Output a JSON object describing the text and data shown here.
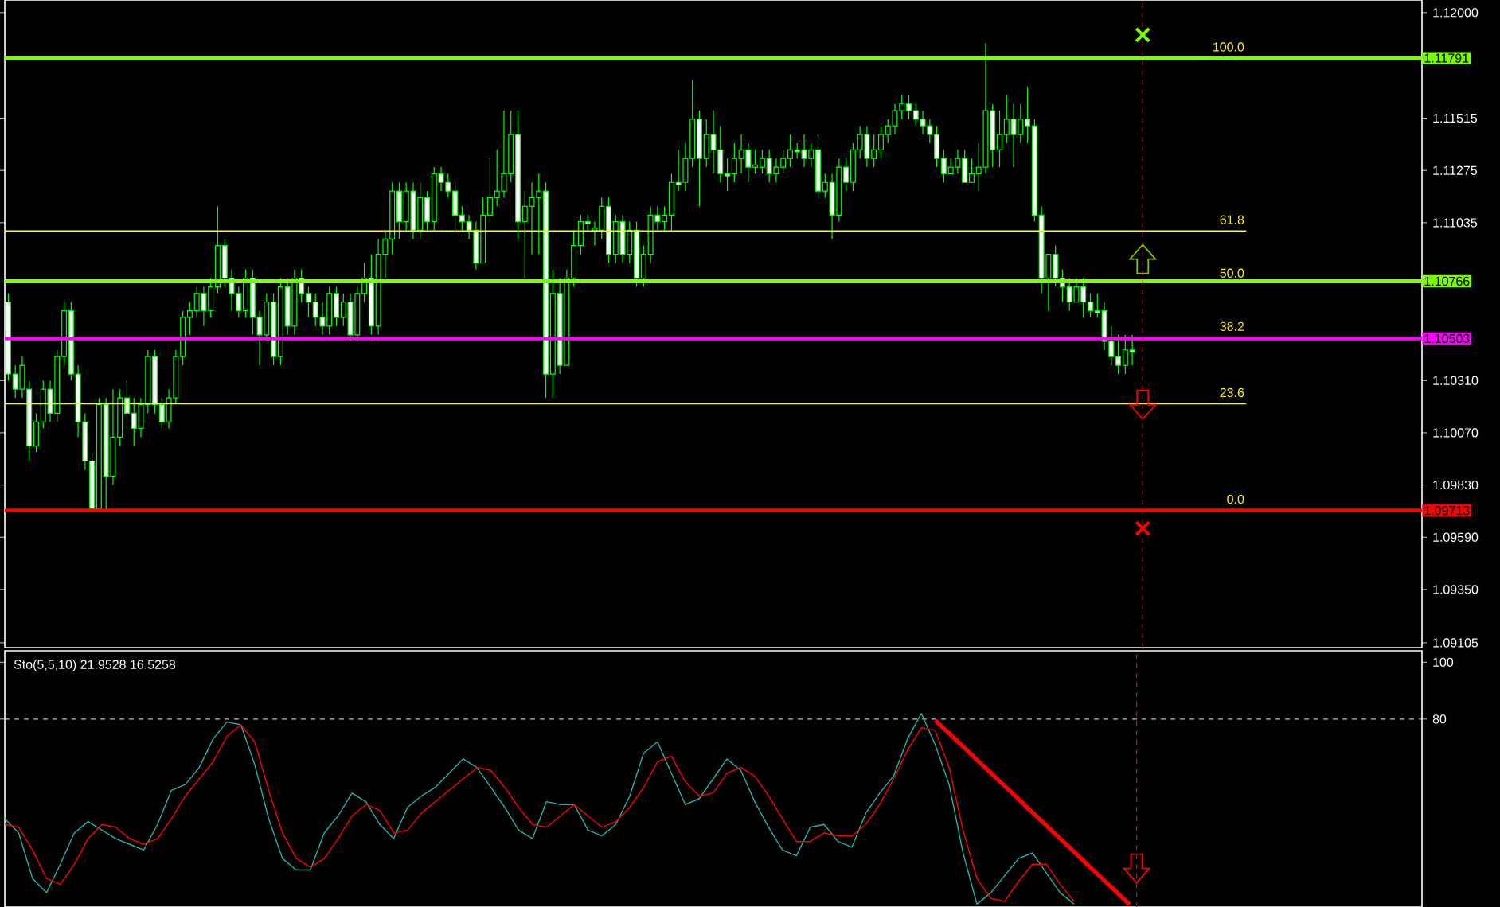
{
  "chart_data": [
    {
      "type": "candlestick",
      "color": "#00ff00",
      "tick_labels": "y",
      "categories": [
        null,
        null,
        null,
        null,
        null,
        null,
        null,
        null,
        null,
        null,
        null,
        null,
        null,
        null,
        null,
        null,
        null,
        null,
        null,
        null,
        null,
        null,
        null,
        null,
        null,
        null,
        null,
        null,
        null,
        null,
        null,
        null,
        null,
        null,
        null,
        null,
        null,
        null,
        null,
        null,
        null,
        null,
        null,
        null,
        null,
        null,
        null,
        null,
        null,
        null,
        null,
        null,
        null,
        null,
        null,
        null,
        null,
        null,
        null,
        null,
        null,
        null,
        null,
        null,
        null,
        null,
        null,
        null,
        null,
        null,
        null,
        null,
        null,
        null,
        null,
        null,
        null,
        null,
        null,
        null,
        null,
        null,
        null,
        null,
        null,
        null,
        null,
        null,
        null,
        null,
        null,
        null,
        null,
        null,
        null,
        null,
        null,
        null,
        null,
        null,
        null,
        null,
        null,
        null,
        null,
        null,
        null,
        null,
        null,
        null,
        null,
        null,
        null,
        null,
        null,
        null,
        null,
        null,
        null,
        null,
        null,
        null,
        null,
        null,
        null,
        null,
        null,
        null,
        null,
        null,
        null,
        null,
        null,
        null,
        null,
        null,
        null,
        null,
        null,
        null,
        null,
        null,
        null,
        null,
        null,
        null,
        null,
        null,
        null,
        null,
        null,
        null,
        null,
        null,
        null,
        null,
        null,
        null,
        null,
        null,
        null,
        null,
        null,
        null,
        null,
        null,
        null,
        null,
        null,
        null,
        null,
        null,
        null,
        null,
        null,
        null,
        null,
        null,
        null,
        null,
        null,
        null,
        null,
        null,
        null,
        null,
        null,
        null,
        null,
        null,
        null,
        null,
        null,
        null,
        null,
        null,
        null,
        null,
        null,
        null,
        null,
        null,
        null
      ],
      "ohlc": [
        [
          1.1067,
          1.1071,
          1.1031,
          1.1034
        ],
        [
          1.1034,
          1.1038,
          1.1023,
          1.1027
        ],
        [
          1.1027,
          1.1042,
          1.1023,
          1.1038
        ],
        [
          1.1027,
          1.1031,
          1.0994,
          1.1001
        ],
        [
          1.1001,
          1.1016,
          1.0998,
          1.1012
        ],
        [
          1.1012,
          1.1031,
          1.1009,
          1.1027
        ],
        [
          1.1027,
          1.1031,
          1.1012,
          1.1016
        ],
        [
          1.1016,
          1.1045,
          1.1012,
          1.1042
        ],
        [
          1.1042,
          1.1067,
          1.1038,
          1.1063
        ],
        [
          1.1063,
          1.1067,
          1.1031,
          1.1034
        ],
        [
          1.1034,
          1.1038,
          1.1005,
          1.1012
        ],
        [
          1.1012,
          1.1016,
          1.099,
          1.0994
        ],
        [
          1.0994,
          1.0998,
          1.0972,
          1.0972
        ],
        [
          1.0972,
          1.1023,
          1.0972,
          1.102
        ],
        [
          1.102,
          1.1023,
          1.0972,
          1.0987
        ],
        [
          1.0987,
          1.1027,
          1.0983,
          1.1005
        ],
        [
          1.1005,
          1.1027,
          1.1001,
          1.1023
        ],
        [
          1.1023,
          1.1031,
          1.1009,
          1.1016
        ],
        [
          1.1016,
          1.1023,
          1.1001,
          1.1009
        ],
        [
          1.1009,
          1.1023,
          1.1005,
          1.102
        ],
        [
          1.102,
          1.1045,
          1.1016,
          1.1042
        ],
        [
          1.1042,
          1.1045,
          1.1016,
          1.102
        ],
        [
          1.102,
          1.1023,
          1.1009,
          1.1012
        ],
        [
          1.1012,
          1.1027,
          1.1009,
          1.1023
        ],
        [
          1.1023,
          1.1045,
          1.102,
          1.1042
        ],
        [
          1.1042,
          1.1063,
          1.1038,
          1.106
        ],
        [
          1.106,
          1.1067,
          1.1052,
          1.1063
        ],
        [
          1.1063,
          1.1074,
          1.106,
          1.1071
        ],
        [
          1.1071,
          1.1074,
          1.1056,
          1.1063
        ],
        [
          1.1063,
          1.1078,
          1.106,
          1.1074
        ],
        [
          1.1074,
          1.1111,
          1.1071,
          1.1093
        ],
        [
          1.1093,
          1.1096,
          1.1074,
          1.1078
        ],
        [
          1.1078,
          1.1082,
          1.1063,
          1.1071
        ],
        [
          1.1071,
          1.1074,
          1.106,
          1.1063
        ],
        [
          1.1063,
          1.1082,
          1.106,
          1.1078
        ],
        [
          1.1078,
          1.1082,
          1.1052,
          1.106
        ],
        [
          1.106,
          1.1063,
          1.1038,
          1.1052
        ],
        [
          1.1052,
          1.1071,
          1.1049,
          1.1067
        ],
        [
          1.1067,
          1.1071,
          1.1038,
          1.1042
        ],
        [
          1.1042,
          1.1078,
          1.1038,
          1.1074
        ],
        [
          1.1074,
          1.1078,
          1.1052,
          1.1056
        ],
        [
          1.1056,
          1.1082,
          1.1052,
          1.1078
        ],
        [
          1.1078,
          1.1082,
          1.1067,
          1.1071
        ],
        [
          1.1071,
          1.1074,
          1.106,
          1.1067
        ],
        [
          1.1067,
          1.1071,
          1.1056,
          1.106
        ],
        [
          1.106,
          1.1067,
          1.1052,
          1.1056
        ],
        [
          1.1056,
          1.1074,
          1.1052,
          1.1071
        ],
        [
          1.1071,
          1.1074,
          1.1056,
          1.106
        ],
        [
          1.106,
          1.1071,
          1.1056,
          1.1067
        ],
        [
          1.1067,
          1.1071,
          1.1049,
          1.1052
        ],
        [
          1.1052,
          1.1074,
          1.1049,
          1.1071
        ],
        [
          1.1071,
          1.1085,
          1.1067,
          1.1078
        ],
        [
          1.1078,
          1.1089,
          1.1052,
          1.1056
        ],
        [
          1.1056,
          1.1096,
          1.1052,
          1.1089
        ],
        [
          1.1089,
          1.11,
          1.1078,
          1.1096
        ],
        [
          1.1096,
          1.1122,
          1.1089,
          1.1118
        ],
        [
          1.1118,
          1.1122,
          1.1096,
          1.1104
        ],
        [
          1.1104,
          1.1122,
          1.11,
          1.1118
        ],
        [
          1.1118,
          1.1122,
          1.1096,
          1.11
        ],
        [
          1.11,
          1.1122,
          1.1096,
          1.1115
        ],
        [
          1.1115,
          1.1118,
          1.11,
          1.1104
        ],
        [
          1.1104,
          1.1129,
          1.11,
          1.1126
        ],
        [
          1.1126,
          1.1129,
          1.1118,
          1.1122
        ],
        [
          1.1122,
          1.1126,
          1.1115,
          1.1118
        ],
        [
          1.1118,
          1.1122,
          1.11,
          1.1107
        ],
        [
          1.1107,
          1.1111,
          1.11,
          1.1104
        ],
        [
          1.1104,
          1.1107,
          1.1096,
          1.11
        ],
        [
          1.11,
          1.1104,
          1.1082,
          1.1085
        ],
        [
          1.1085,
          1.1115,
          1.1085,
          1.1107
        ],
        [
          1.1107,
          1.1133,
          1.1104,
          1.1115
        ],
        [
          1.1115,
          1.1137,
          1.1111,
          1.1118
        ],
        [
          1.1118,
          1.1155,
          1.1115,
          1.1126
        ],
        [
          1.1126,
          1.1155,
          1.1122,
          1.1144
        ],
        [
          1.1144,
          1.1155,
          1.1096,
          1.1104
        ],
        [
          1.1104,
          1.1118,
          1.1078,
          1.1111
        ],
        [
          1.1111,
          1.1122,
          1.1089,
          1.1115
        ],
        [
          1.1115,
          1.1126,
          1.1089,
          1.1118
        ],
        [
          1.1118,
          1.1122,
          1.1023,
          1.1034
        ],
        [
          1.1034,
          1.1082,
          1.1023,
          1.1071
        ],
        [
          1.1071,
          1.1078,
          1.1034,
          1.1038
        ],
        [
          1.1038,
          1.1082,
          1.1038,
          1.1078
        ],
        [
          1.1078,
          1.11,
          1.1074,
          1.1093
        ],
        [
          1.1093,
          1.1107,
          1.1089,
          1.1104
        ],
        [
          1.1104,
          1.1107,
          1.11,
          1.1103
        ],
        [
          1.11,
          1.1104,
          1.1093,
          1.1101
        ],
        [
          1.11,
          1.1115,
          1.1096,
          1.1111
        ],
        [
          1.1111,
          1.1115,
          1.1085,
          1.1089
        ],
        [
          1.1089,
          1.1107,
          1.1085,
          1.1104
        ],
        [
          1.1104,
          1.1107,
          1.1085,
          1.1089
        ],
        [
          1.1089,
          1.1104,
          1.1085,
          1.11
        ],
        [
          1.11,
          1.1104,
          1.1074,
          1.1078
        ],
        [
          1.1078,
          1.1093,
          1.1074,
          1.1089
        ],
        [
          1.1089,
          1.1111,
          1.1085,
          1.1107
        ],
        [
          1.1107,
          1.1111,
          1.11,
          1.1104
        ],
        [
          1.1104,
          1.1111,
          1.11,
          1.1107
        ],
        [
          1.1107,
          1.1126,
          1.11,
          1.1122
        ],
        [
          1.1122,
          1.1137,
          1.1118,
          1.1121
        ],
        [
          1.1122,
          1.114,
          1.1118,
          1.1133
        ],
        [
          1.1133,
          1.1169,
          1.1129,
          1.1151
        ],
        [
          1.1151,
          1.1155,
          1.1111,
          1.1133
        ],
        [
          1.1133,
          1.1151,
          1.1129,
          1.1144
        ],
        [
          1.1144,
          1.1155,
          1.1126,
          1.1137
        ],
        [
          1.1137,
          1.1148,
          1.1122,
          1.1126
        ],
        [
          1.1126,
          1.1133,
          1.1118,
          1.1125
        ],
        [
          1.1126,
          1.114,
          1.1122,
          1.1133
        ],
        [
          1.1133,
          1.1144,
          1.1126,
          1.1137
        ],
        [
          1.1137,
          1.114,
          1.1122,
          1.1129
        ],
        [
          1.1129,
          1.1137,
          1.1126,
          1.113
        ],
        [
          1.1129,
          1.1137,
          1.1126,
          1.1133
        ],
        [
          1.1133,
          1.1137,
          1.1122,
          1.1126
        ],
        [
          1.1126,
          1.1133,
          1.1122,
          1.1129
        ],
        [
          1.1129,
          1.1137,
          1.1126,
          1.1133
        ],
        [
          1.1133,
          1.1144,
          1.1129,
          1.1137
        ],
        [
          1.1137,
          1.114,
          1.1133,
          1.1136
        ],
        [
          1.1137,
          1.1144,
          1.1129,
          1.1133
        ],
        [
          1.1133,
          1.114,
          1.1129,
          1.1137
        ],
        [
          1.1137,
          1.1144,
          1.1115,
          1.1118
        ],
        [
          1.1118,
          1.1126,
          1.1115,
          1.1122
        ],
        [
          1.1122,
          1.1126,
          1.1096,
          1.1107
        ],
        [
          1.1107,
          1.1133,
          1.1104,
          1.1129
        ],
        [
          1.1129,
          1.1133,
          1.1118,
          1.1122
        ],
        [
          1.1122,
          1.114,
          1.1118,
          1.1137
        ],
        [
          1.1137,
          1.1148,
          1.1133,
          1.1144
        ],
        [
          1.1144,
          1.1148,
          1.1129,
          1.1133
        ],
        [
          1.1133,
          1.1144,
          1.1129,
          1.1137
        ],
        [
          1.1137,
          1.1148,
          1.1133,
          1.1144
        ],
        [
          1.1144,
          1.1151,
          1.114,
          1.1148
        ],
        [
          1.1148,
          1.1158,
          1.1144,
          1.1155
        ],
        [
          1.1155,
          1.1162,
          1.1151,
          1.1158
        ],
        [
          1.1158,
          1.1162,
          1.1151,
          1.1155
        ],
        [
          1.1155,
          1.1158,
          1.1148,
          1.1151
        ],
        [
          1.1151,
          1.1155,
          1.1144,
          1.1148
        ],
        [
          1.1148,
          1.1151,
          1.114,
          1.1144
        ],
        [
          1.1144,
          1.1148,
          1.1129,
          1.1133
        ],
        [
          1.1133,
          1.1137,
          1.1122,
          1.1126
        ],
        [
          1.1126,
          1.1133,
          1.1126,
          1.1129
        ],
        [
          1.1129,
          1.1137,
          1.1126,
          1.1133
        ],
        [
          1.1133,
          1.1137,
          1.1122,
          1.1122
        ],
        [
          1.1122,
          1.1133,
          1.1122,
          1.1126
        ],
        [
          1.1126,
          1.114,
          1.1118,
          1.1129
        ],
        [
          1.1129,
          1.1186,
          1.1126,
          1.1155
        ],
        [
          1.1155,
          1.1158,
          1.1129,
          1.1137
        ],
        [
          1.1137,
          1.1155,
          1.1129,
          1.1144
        ],
        [
          1.1144,
          1.1162,
          1.114,
          1.1151
        ],
        [
          1.1151,
          1.1158,
          1.1129,
          1.1144
        ],
        [
          1.1144,
          1.1158,
          1.114,
          1.1151
        ],
        [
          1.1151,
          1.1166,
          1.114,
          1.1148
        ],
        [
          1.1148,
          1.1151,
          1.1104,
          1.1107
        ],
        [
          1.1107,
          1.1111,
          1.1071,
          1.1078
        ],
        [
          1.1078,
          1.1089,
          1.1063,
          1.1089
        ],
        [
          1.1089,
          1.1093,
          1.1074,
          1.1078
        ],
        [
          1.1078,
          1.1082,
          1.1067,
          1.1074
        ],
        [
          1.1074,
          1.1078,
          1.1063,
          1.1067
        ],
        [
          1.1067,
          1.1078,
          1.1067,
          1.1074
        ],
        [
          1.1074,
          1.1078,
          1.106,
          1.1067
        ],
        [
          1.1067,
          1.1071,
          1.106,
          1.1063
        ],
        [
          1.1063,
          1.1071,
          1.106,
          1.1062
        ],
        [
          1.1063,
          1.1067,
          1.1045,
          1.1049
        ],
        [
          1.1049,
          1.1056,
          1.1038,
          1.1042
        ],
        [
          1.1042,
          1.1052,
          1.1034,
          1.1038
        ],
        [
          1.1038,
          1.1052,
          1.1034,
          1.1045
        ],
        [
          1.1045,
          1.1052,
          1.1038,
          1.1044
        ],
        null,
        null,
        null,
        null,
        null,
        null,
        null,
        null,
        null,
        null,
        null,
        null,
        null,
        null,
        null,
        null,
        null,
        null,
        null,
        null,
        null,
        null,
        null,
        null,
        null,
        null,
        null,
        null,
        null,
        null,
        null,
        null,
        null,
        null,
        null,
        null,
        null,
        null,
        null,
        null,
        null
      ],
      "ylim": [
        1.09083,
        1.12058
      ],
      "yticks": [
        {
          "value": 1.12,
          "label": "1.12000"
        },
        1.11515,
        1.11275,
        1.11035,
        {
          "value": 1.1031,
          "label": "1.10310"
        },
        {
          "value": 1.1007,
          "label": "1.10070"
        },
        {
          "value": 1.0983,
          "label": "1.09830"
        },
        {
          "value": 1.0959,
          "label": "1.09590"
        },
        {
          "value": 1.0935,
          "label": "1.09350"
        },
        1.09105
      ],
      "annotations": [
        {
          "text": "100.0",
          "y": 1.11791
        },
        {
          "text": "61.8",
          "y": 1.10997
        },
        {
          "text": "50.0",
          "y": 1.10752
        },
        {
          "text": "38.2",
          "y": 1.10507
        },
        {
          "text": "23.6",
          "y": 1.10203
        },
        {
          "text": "0.0",
          "y": 1.09713
        }
      ],
      "ref_lines": [
        {
          "axis": "y",
          "value": 1.10997,
          "color": "#ffff00",
          "line_style": "solid"
        },
        {
          "axis": "y",
          "value": 1.10203,
          "color": "#ffff00",
          "line_style": "solid"
        },
        {
          "axis": "y",
          "value": 1.11791,
          "label": "1.11791",
          "color": "#7cfc00"
        },
        {
          "axis": "y",
          "value": 1.10766,
          "label": "1.10766",
          "color": "#7cfc00"
        },
        {
          "axis": "y",
          "value": 1.10503,
          "label": "1.10503",
          "color": "#ff00ff"
        },
        {
          "axis": "y",
          "value": 1.09713,
          "label": "1.09713",
          "color": "#ff0000"
        }
      ]
    },
    {
      "type": "line",
      "title": "Sto(5,5,10) 21.9528 16.5258",
      "tick_labels": "y",
      "categories": [
        null,
        null,
        null,
        null,
        null,
        null,
        null,
        null,
        null,
        null,
        null,
        null,
        null,
        null,
        null,
        null,
        null,
        null,
        null,
        null,
        null,
        null,
        null,
        null,
        null,
        null,
        null,
        null,
        null,
        null,
        null,
        null,
        null,
        null,
        null,
        null,
        null,
        null,
        null,
        null,
        null,
        null,
        null,
        null,
        null,
        null,
        null,
        null,
        null,
        null,
        null,
        null,
        null,
        null,
        null,
        null,
        null,
        null,
        null,
        null,
        null,
        null,
        null,
        null,
        null,
        null,
        null,
        null,
        null,
        null,
        null,
        null,
        null,
        null,
        null,
        null,
        null,
        null,
        null,
        null,
        null,
        null
      ],
      "ylim": [
        14,
        104
      ],
      "yticks": [
        80,
        100
      ],
      "series": [
        {
          "color": "#20b2aa",
          "values": [
            45,
            40,
            24,
            19,
            29,
            40,
            44,
            41,
            38,
            36,
            34,
            43,
            55,
            57,
            63,
            73,
            79,
            78,
            64,
            45,
            31,
            27,
            27,
            40,
            46,
            54,
            51,
            43,
            38,
            49,
            53,
            56,
            61,
            66,
            63,
            56,
            49,
            41,
            38,
            51,
            50,
            50,
            41,
            39,
            43,
            53,
            68,
            72,
            61,
            50,
            52,
            59,
            66,
            62,
            51,
            42,
            34,
            32,
            42,
            43,
            37,
            35,
            47,
            54,
            60,
            73,
            82,
            71,
            57,
            33,
            15,
            19,
            25,
            31,
            33,
            26,
            19,
            15,
            null,
            null,
            null,
            null
          ]
        },
        {
          "color": "#ff0000",
          "values": [
            43,
            42,
            34,
            24,
            22,
            29,
            38,
            43,
            42,
            38,
            36,
            38,
            45,
            53,
            59,
            65,
            74,
            78,
            72,
            55,
            40,
            31,
            28,
            31,
            38,
            46,
            50,
            48,
            40,
            41,
            47,
            51,
            55,
            59,
            63,
            62,
            56,
            49,
            43,
            42,
            46,
            50,
            46,
            42,
            44,
            49,
            56,
            65,
            67,
            58,
            53,
            54,
            61,
            63,
            60,
            53,
            45,
            37,
            37,
            40,
            39,
            39,
            43,
            50,
            59,
            69,
            77,
            76,
            63,
            41,
            24,
            17,
            16,
            23,
            29,
            29,
            22,
            16,
            null,
            null,
            null,
            null
          ]
        },
        {
          "color": "#ff0000",
          "values": [
            null,
            null,
            null,
            null,
            null,
            null,
            null,
            null,
            null,
            null,
            null,
            null,
            null,
            null,
            null,
            null,
            null,
            null,
            null,
            null,
            null,
            null,
            null,
            null,
            null,
            null,
            null,
            null,
            null,
            null,
            null,
            null,
            null,
            null,
            null,
            null,
            null,
            null,
            null,
            null,
            null,
            null,
            null,
            null,
            null,
            null,
            null,
            null,
            null,
            null,
            null,
            null,
            null,
            null,
            null,
            null,
            null,
            null,
            null,
            null,
            null,
            null,
            null,
            null,
            null,
            null,
            null,
            79.6,
            75.0,
            70.4,
            65.7,
            61.1,
            56.5,
            51.9,
            47.2,
            42.6,
            38.0,
            33.4,
            28.7,
            24.1,
            19.5,
            14.9
          ]
        }
      ],
      "ref_lines": [
        {
          "axis": "y",
          "value": 80,
          "color": "#c0c0c0",
          "line_style": "dashed"
        }
      ]
    }
  ]
}
